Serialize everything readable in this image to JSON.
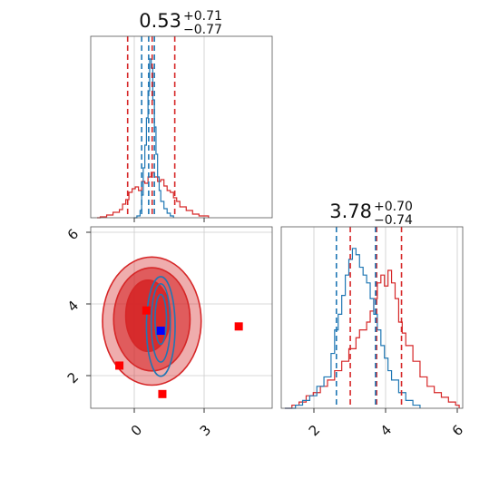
{
  "chart_data": [
    {
      "type": "histogram",
      "panel": "top-left",
      "title": {
        "value": "0.53",
        "plus": "+0.71",
        "minus": "−0.77"
      },
      "xlim": [
        -1.4,
        4.3
      ],
      "colors": {
        "red": "#d62728",
        "blue": "#1f77b4"
      },
      "red_quantiles": [
        -0.24,
        0.53,
        1.24
      ],
      "blue_quantiles": [
        0.2,
        0.42,
        0.6
      ],
      "red_steps": [
        [
          -1.2,
          0
        ],
        [
          -1.1,
          1
        ],
        [
          -0.9,
          3
        ],
        [
          -0.7,
          6
        ],
        [
          -0.5,
          9
        ],
        [
          -0.4,
          15
        ],
        [
          -0.3,
          20
        ],
        [
          -0.2,
          28
        ],
        [
          -0.1,
          32
        ],
        [
          0,
          34
        ],
        [
          0.1,
          30
        ],
        [
          0.2,
          40
        ],
        [
          0.3,
          38
        ],
        [
          0.4,
          45
        ],
        [
          0.5,
          50
        ],
        [
          0.6,
          45
        ],
        [
          0.7,
          40
        ],
        [
          0.8,
          42
        ],
        [
          0.9,
          35
        ],
        [
          1.0,
          30
        ],
        [
          1.1,
          28
        ],
        [
          1.2,
          22
        ],
        [
          1.3,
          18
        ],
        [
          1.4,
          12
        ],
        [
          1.6,
          8
        ],
        [
          1.8,
          4
        ],
        [
          2.0,
          2
        ],
        [
          2.3,
          0
        ]
      ],
      "blue_steps": [
        [
          -0.05,
          0
        ],
        [
          0.05,
          2
        ],
        [
          0.15,
          8
        ],
        [
          0.2,
          25
        ],
        [
          0.25,
          55
        ],
        [
          0.3,
          80
        ],
        [
          0.35,
          110
        ],
        [
          0.4,
          140
        ],
        [
          0.45,
          175
        ],
        [
          0.5,
          165
        ],
        [
          0.55,
          130
        ],
        [
          0.6,
          100
        ],
        [
          0.65,
          70
        ],
        [
          0.7,
          45
        ],
        [
          0.75,
          30
        ],
        [
          0.8,
          18
        ],
        [
          0.9,
          10
        ],
        [
          1.0,
          5
        ],
        [
          1.1,
          2
        ],
        [
          1.2,
          0
        ]
      ],
      "ymax": 190
    },
    {
      "type": "contour",
      "panel": "bottom-left",
      "xlim": [
        -1.4,
        4.3
      ],
      "ylim": [
        1.1,
        6.2
      ],
      "xticks": [
        "0",
        "3"
      ],
      "yticks": [
        "2",
        "4",
        "6"
      ],
      "red_contours": [
        {
          "cx": 0.52,
          "cy": 3.55,
          "rx": 1.55,
          "ry": 1.8
        },
        {
          "cx": 0.52,
          "cy": 3.6,
          "rx": 1.2,
          "ry": 1.45
        },
        {
          "cx": 0.4,
          "cy": 3.7,
          "rx": 0.7,
          "ry": 1.0
        }
      ],
      "blue_contours": [
        {
          "cx": 0.8,
          "cy": 3.4,
          "rx": 0.45,
          "ry": 1.4
        },
        {
          "cx": 0.8,
          "cy": 3.5,
          "rx": 0.3,
          "ry": 1.1
        },
        {
          "cx": 0.8,
          "cy": 3.6,
          "rx": 0.18,
          "ry": 0.7
        }
      ],
      "red_points": [
        [
          -0.5,
          2.3
        ],
        [
          0.35,
          3.85
        ],
        [
          0.85,
          1.5
        ],
        [
          3.25,
          3.4
        ]
      ],
      "blue_points": [
        [
          0.8,
          3.28
        ]
      ]
    },
    {
      "type": "histogram",
      "panel": "bottom-right",
      "title": {
        "value": "3.78",
        "plus": "+0.70",
        "minus": "−0.74"
      },
      "xlim": [
        1.1,
        6.2
      ],
      "xticks": [
        "2",
        "4",
        "6"
      ],
      "red_quantiles": [
        3.04,
        3.78,
        4.48
      ],
      "blue_quantiles": [
        2.65,
        3.75
      ],
      "red_steps": [
        [
          1.2,
          0
        ],
        [
          1.4,
          2
        ],
        [
          1.6,
          4
        ],
        [
          1.8,
          8
        ],
        [
          2.0,
          10
        ],
        [
          2.2,
          14
        ],
        [
          2.4,
          18
        ],
        [
          2.6,
          24
        ],
        [
          2.8,
          30
        ],
        [
          3.0,
          38
        ],
        [
          3.2,
          45
        ],
        [
          3.3,
          50
        ],
        [
          3.5,
          55
        ],
        [
          3.6,
          62
        ],
        [
          3.7,
          70
        ],
        [
          3.8,
          80
        ],
        [
          3.9,
          85
        ],
        [
          4.0,
          78
        ],
        [
          4.1,
          88
        ],
        [
          4.2,
          80
        ],
        [
          4.3,
          70
        ],
        [
          4.4,
          55
        ],
        [
          4.5,
          48
        ],
        [
          4.6,
          40
        ],
        [
          4.8,
          30
        ],
        [
          5.0,
          20
        ],
        [
          5.2,
          14
        ],
        [
          5.4,
          10
        ],
        [
          5.6,
          7
        ],
        [
          5.8,
          4
        ],
        [
          6.0,
          2
        ],
        [
          6.1,
          0
        ]
      ],
      "blue_steps": [
        [
          1.2,
          0
        ],
        [
          1.5,
          2
        ],
        [
          1.7,
          5
        ],
        [
          1.9,
          8
        ],
        [
          2.1,
          14
        ],
        [
          2.3,
          20
        ],
        [
          2.5,
          35
        ],
        [
          2.6,
          50
        ],
        [
          2.7,
          60
        ],
        [
          2.8,
          72
        ],
        [
          2.9,
          85
        ],
        [
          3.0,
          95
        ],
        [
          3.1,
          102
        ],
        [
          3.2,
          98
        ],
        [
          3.3,
          90
        ],
        [
          3.4,
          85
        ],
        [
          3.5,
          80
        ],
        [
          3.6,
          70
        ],
        [
          3.7,
          60
        ],
        [
          3.8,
          50
        ],
        [
          3.9,
          40
        ],
        [
          4.0,
          32
        ],
        [
          4.1,
          24
        ],
        [
          4.2,
          18
        ],
        [
          4.4,
          10
        ],
        [
          4.6,
          5
        ],
        [
          4.8,
          2
        ],
        [
          5.0,
          0
        ]
      ],
      "ymax": 110
    }
  ]
}
